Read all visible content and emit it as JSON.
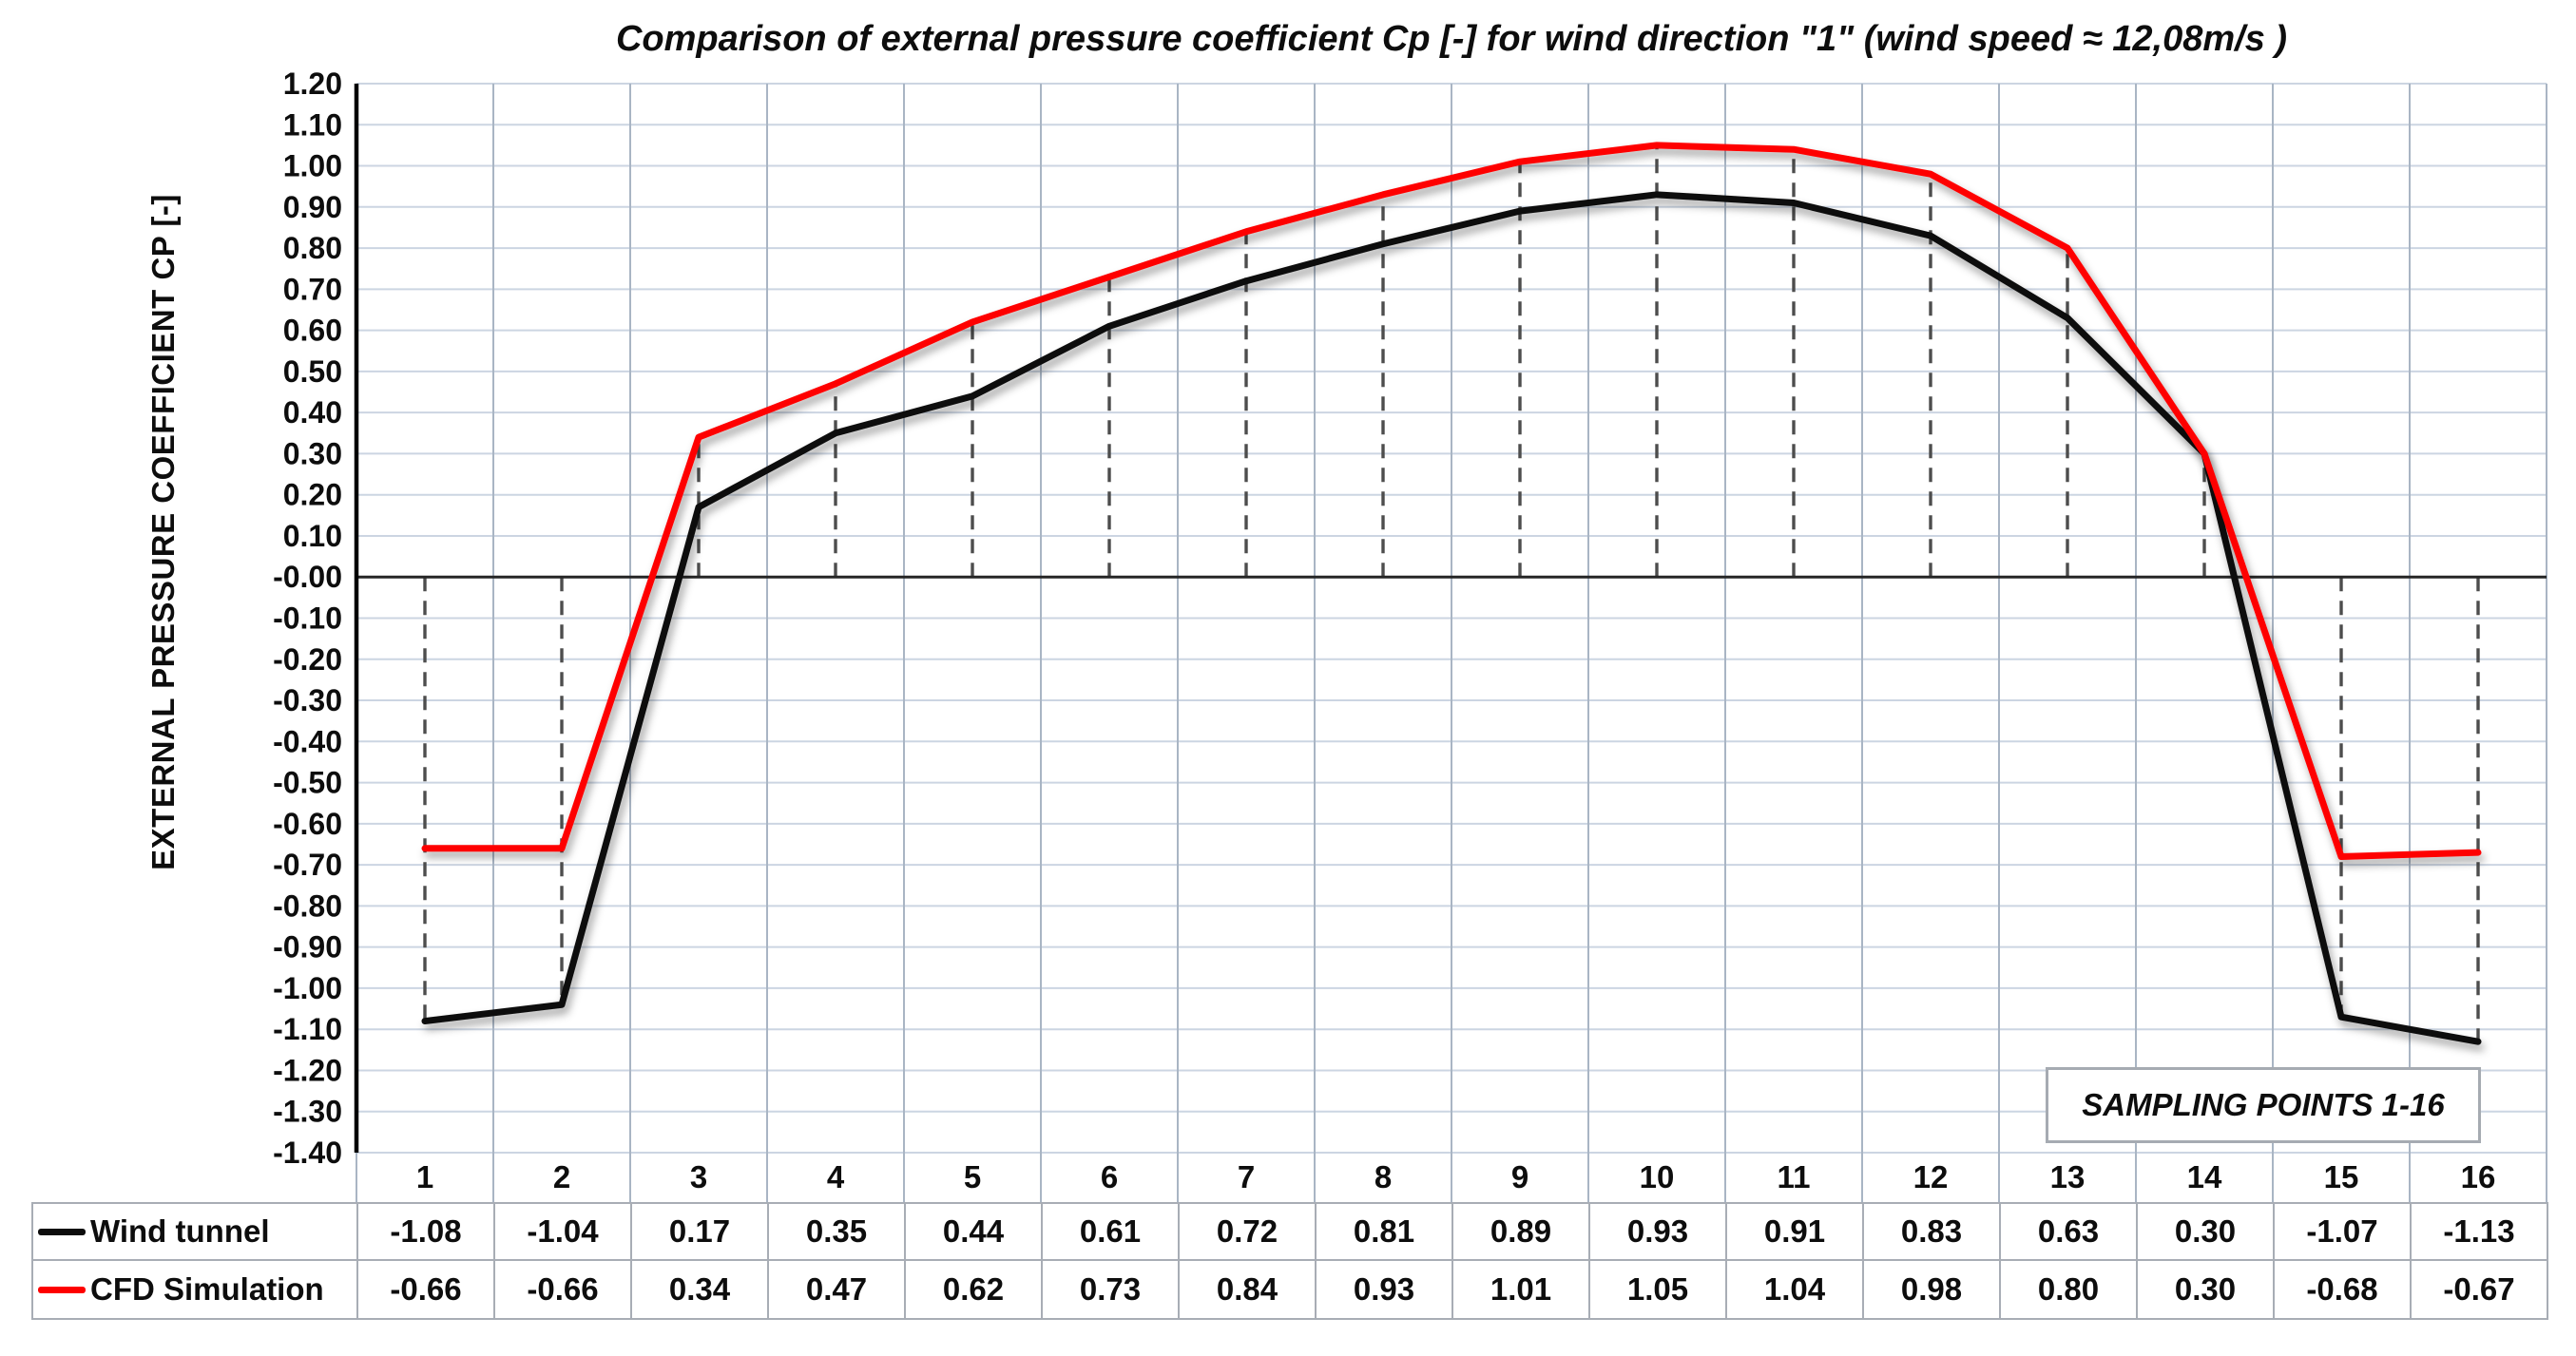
{
  "chart_data": {
    "type": "line",
    "title": "Comparison of external pressure coefficient Cp [-] for wind direction \"1\" (wind speed ≈ 12,08m/s )",
    "ylabel": "EXTERNAL PRESSURE COEFFICIENT CP [-]",
    "xlabel": "",
    "annotation": "SAMPLING POINTS 1-16",
    "categories": [
      "1",
      "2",
      "3",
      "4",
      "5",
      "6",
      "7",
      "8",
      "9",
      "10",
      "11",
      "12",
      "13",
      "14",
      "15",
      "16"
    ],
    "series": [
      {
        "name": "Wind tunnel",
        "color": "#0d0d0d",
        "values": [
          "-1.08",
          "-1.04",
          "0.17",
          "0.35",
          "0.44",
          "0.61",
          "0.72",
          "0.81",
          "0.89",
          "0.93",
          "0.91",
          "0.83",
          "0.63",
          "0.30",
          "-1.07",
          "-1.13"
        ]
      },
      {
        "name": "CFD Simulation",
        "color": "#fe0000",
        "values": [
          "-0.66",
          "-0.66",
          "0.34",
          "0.47",
          "0.62",
          "0.73",
          "0.84",
          "0.93",
          "1.01",
          "1.05",
          "1.04",
          "0.98",
          "0.80",
          "0.30",
          "-0.68",
          "-0.67"
        ]
      }
    ],
    "ylim": [
      -1.4,
      1.2
    ],
    "ytick_step": 0.1,
    "ytick_format": "2dp",
    "grid": true,
    "drop_lines": "dashed, from zero axis to farthest series value at each category",
    "legend_position": "table-left",
    "colors": {
      "horizontal_grid": "#ccd5e2",
      "vertical_grid": "#a9b5c4",
      "zero_axis": "#262626",
      "y_axis": "#000000",
      "drop_lines": "#4d4d4d",
      "table_border": "#a8adb5",
      "text": "#0d0d0d",
      "background": "#ffffff"
    }
  }
}
